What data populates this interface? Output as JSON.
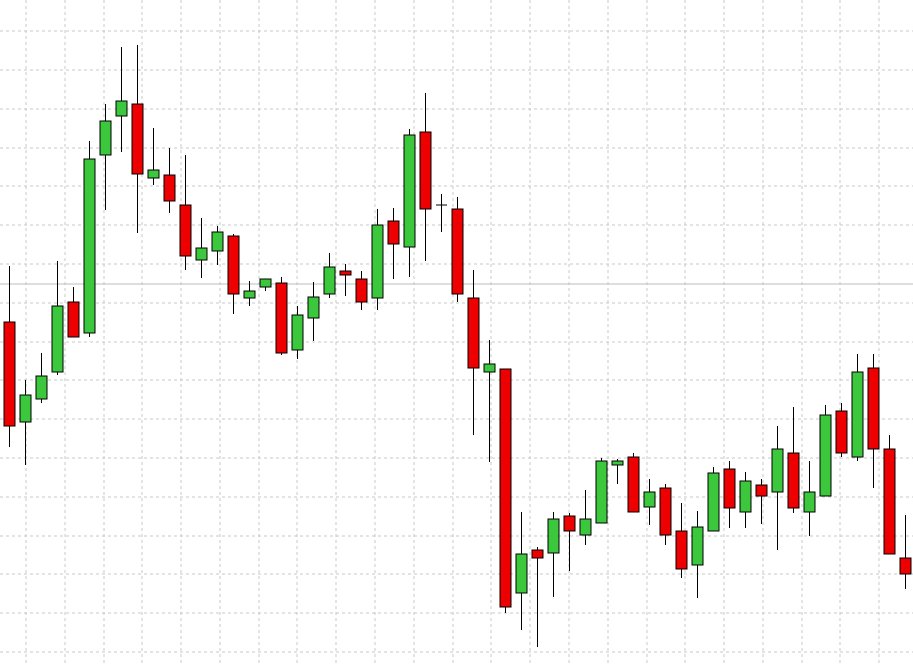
{
  "chart_data": {
    "type": "candlestick",
    "open": [
      343,
      243,
      266,
      293,
      363,
      332,
      510,
      549,
      561,
      487,
      490,
      460,
      405,
      414,
      429,
      367,
      378,
      382,
      315,
      347,
      371,
      394,
      386,
      367,
      444,
      418,
      533,
      460,
      456,
      367,
      293,
      296,
      72,
      115,
      112,
      149,
      130,
      142,
      200,
      208,
      158,
      177,
      134,
      100,
      134,
      196,
      153,
      180,
      173,
      212,
      153,
      169,
      254,
      208,
      297,
      216,
      107
    ],
    "high": [
      399,
      285,
      312,
      404,
      378,
      524,
      561,
      618,
      620,
      537,
      517,
      510,
      447,
      439,
      431,
      384,
      386,
      388,
      359,
      383,
      412,
      401,
      394,
      456,
      457,
      536,
      572,
      471,
      468,
      395,
      325,
      296,
      153,
      118,
      153,
      152,
      175,
      207,
      206,
      212,
      186,
      181,
      162,
      154,
      198,
      204,
      193,
      186,
      239,
      258,
      204,
      260,
      262,
      311,
      311,
      230,
      150
    ],
    "low": [
      218,
      200,
      262,
      290,
      328,
      328,
      455,
      513,
      432,
      480,
      452,
      395,
      387,
      400,
      351,
      359,
      374,
      310,
      306,
      324,
      367,
      369,
      355,
      355,
      386,
      388,
      404,
      433,
      363,
      230,
      203,
      52,
      35,
      18,
      68,
      94,
      120,
      142,
      181,
      153,
      140,
      120,
      87,
      67,
      134,
      137,
      137,
      141,
      115,
      152,
      129,
      169,
      208,
      204,
      177,
      111,
      76
    ],
    "close": [
      239,
      270,
      289,
      359,
      328,
      506,
      544,
      564,
      491,
      495,
      464,
      409,
      417,
      433,
      371,
      374,
      386,
      312,
      350,
      368,
      398,
      390,
      363,
      440,
      421,
      530,
      456,
      460,
      371,
      297,
      301,
      58,
      111,
      107,
      146,
      134,
      146,
      204,
      204,
      153,
      173,
      130,
      96,
      138,
      192,
      157,
      184,
      169,
      216,
      157,
      173,
      250,
      212,
      293,
      216,
      111,
      91
    ],
    "up_color": "#3cc83c",
    "down_color": "#ee0000",
    "ylim": [
      0,
      665
    ],
    "yticks": [
      634,
      595,
      556,
      517,
      479,
      440,
      401,
      362,
      323,
      285,
      246,
      207,
      168,
      129,
      91,
      52,
      13
    ],
    "grid": true,
    "price_line": 381
  }
}
